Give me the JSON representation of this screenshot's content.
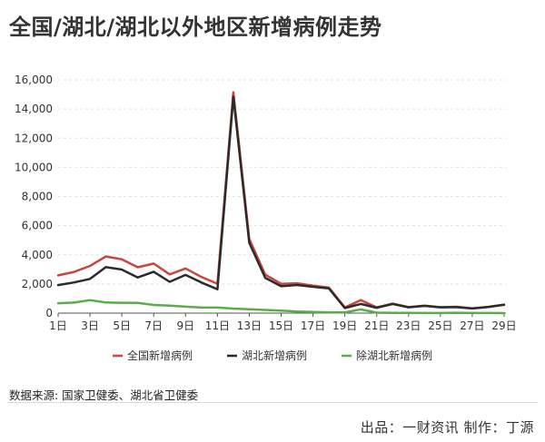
{
  "chart_data": {
    "type": "line",
    "title": "全国/湖北/湖北以外地区新增病例走势",
    "xlabel": "",
    "ylabel": "",
    "x": [
      "1日",
      "2日",
      "3日",
      "4日",
      "5日",
      "6日",
      "7日",
      "8日",
      "9日",
      "10日",
      "11日",
      "12日",
      "13日",
      "14日",
      "15日",
      "16日",
      "17日",
      "18日",
      "19日",
      "20日",
      "21日",
      "22日",
      "23日",
      "24日",
      "25日",
      "26日",
      "27日",
      "28日",
      "29日"
    ],
    "x_tick_labels": [
      "1日",
      "3日",
      "5日",
      "7日",
      "9日",
      "11日",
      "13日",
      "15日",
      "17日",
      "19日",
      "21日",
      "23日",
      "25日",
      "27日",
      "29日"
    ],
    "y_tick_labels": [
      "0",
      "2,000",
      "4,000",
      "6,000",
      "8,000",
      "10,000",
      "12,000",
      "14,000",
      "16,000"
    ],
    "ylim": [
      0,
      16000
    ],
    "grid": true,
    "legend_position": "bottom",
    "series": [
      {
        "name": "全国新增病例",
        "color": "#c9463d",
        "values": [
          2590,
          2825,
          3235,
          3887,
          3694,
          3143,
          3399,
          2656,
          3062,
          2478,
          2015,
          15152,
          5090,
          2641,
          2009,
          2048,
          1886,
          1749,
          394,
          889,
          397,
          648,
          409,
          508,
          406,
          433,
          327,
          427,
          573
        ]
      },
      {
        "name": "湖北新增病例",
        "color": "#2b2b2b",
        "values": [
          1921,
          2103,
          2345,
          3156,
          2987,
          2447,
          2841,
          2147,
          2618,
          2097,
          1638,
          14840,
          4823,
          2420,
          1843,
          1933,
          1807,
          1693,
          349,
          631,
          366,
          630,
          398,
          499,
          401,
          409,
          318,
          423,
          570
        ]
      },
      {
        "name": "除湖北新增病例",
        "color": "#5aab4c",
        "values": [
          680,
          720,
          890,
          731,
          707,
          696,
          558,
          509,
          444,
          381,
          377,
          312,
          267,
          221,
          166,
          115,
          79,
          56,
          45,
          258,
          31,
          18,
          11,
          9,
          5,
          24,
          9,
          4,
          3
        ]
      }
    ]
  },
  "footer": {
    "source": "数据来源: 国家卫健委、湖北省卫健委",
    "credit": "出品：一财资讯 制作：丁源"
  }
}
